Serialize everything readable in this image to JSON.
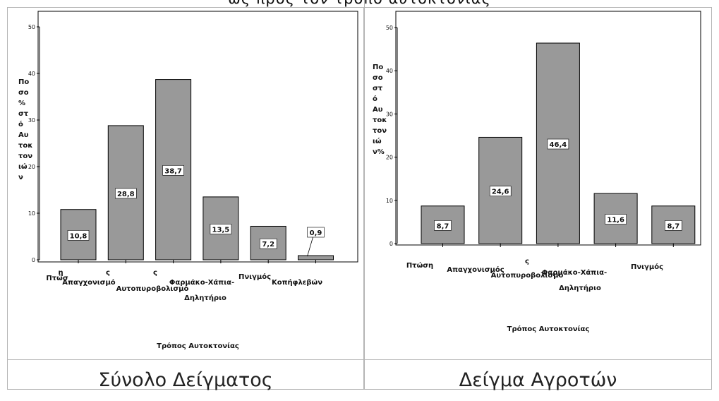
{
  "page_title": "ως προς τον τρόπο αυτοκτονίας",
  "chart_data": [
    {
      "type": "bar",
      "xlabel": "Τρόπος Αυτοκτονίας",
      "ylabel": "Ποσοστό Αυτοκτονιών %",
      "ylim": [
        0,
        50
      ],
      "ticks": [
        0,
        10,
        20,
        30,
        40,
        50
      ],
      "categories": [
        "Πτώση",
        "Απαγχονισμός",
        "Αυτοπυροβολισμός",
        "Φαρμάκο-Χάπια-Δηλητήριο",
        "Πνιγμός",
        "Κοπήφλεβών"
      ],
      "values": [
        10.8,
        28.8,
        38.7,
        13.5,
        7.2,
        0.9
      ],
      "value_labels": [
        "10,8",
        "28,8",
        "38,7",
        "13,5",
        "7,2",
        "0,9"
      ],
      "bar_color": "#999999",
      "caption": "Σύνολο Δείγματος"
    },
    {
      "type": "bar",
      "xlabel": "Τρόπος Αυτοκτονίας",
      "ylabel": "Ποσοστό Αυτοκτονιών%",
      "ylim": [
        0,
        50
      ],
      "ticks": [
        0,
        10,
        20,
        30,
        40,
        50
      ],
      "categories": [
        "Πτώση",
        "Απαγχονισμός",
        "Αυτοπυροβολισμός",
        "Φαρμάκο-Χάπια-Δηλητήριο",
        "Πνιγμός"
      ],
      "values": [
        8.7,
        24.6,
        46.4,
        11.6,
        8.7
      ],
      "value_labels": [
        "8,7",
        "24,6",
        "46,4",
        "11,6",
        "8,7"
      ],
      "bar_color": "#999999",
      "caption": "Δείγμα Αγροτών"
    }
  ]
}
